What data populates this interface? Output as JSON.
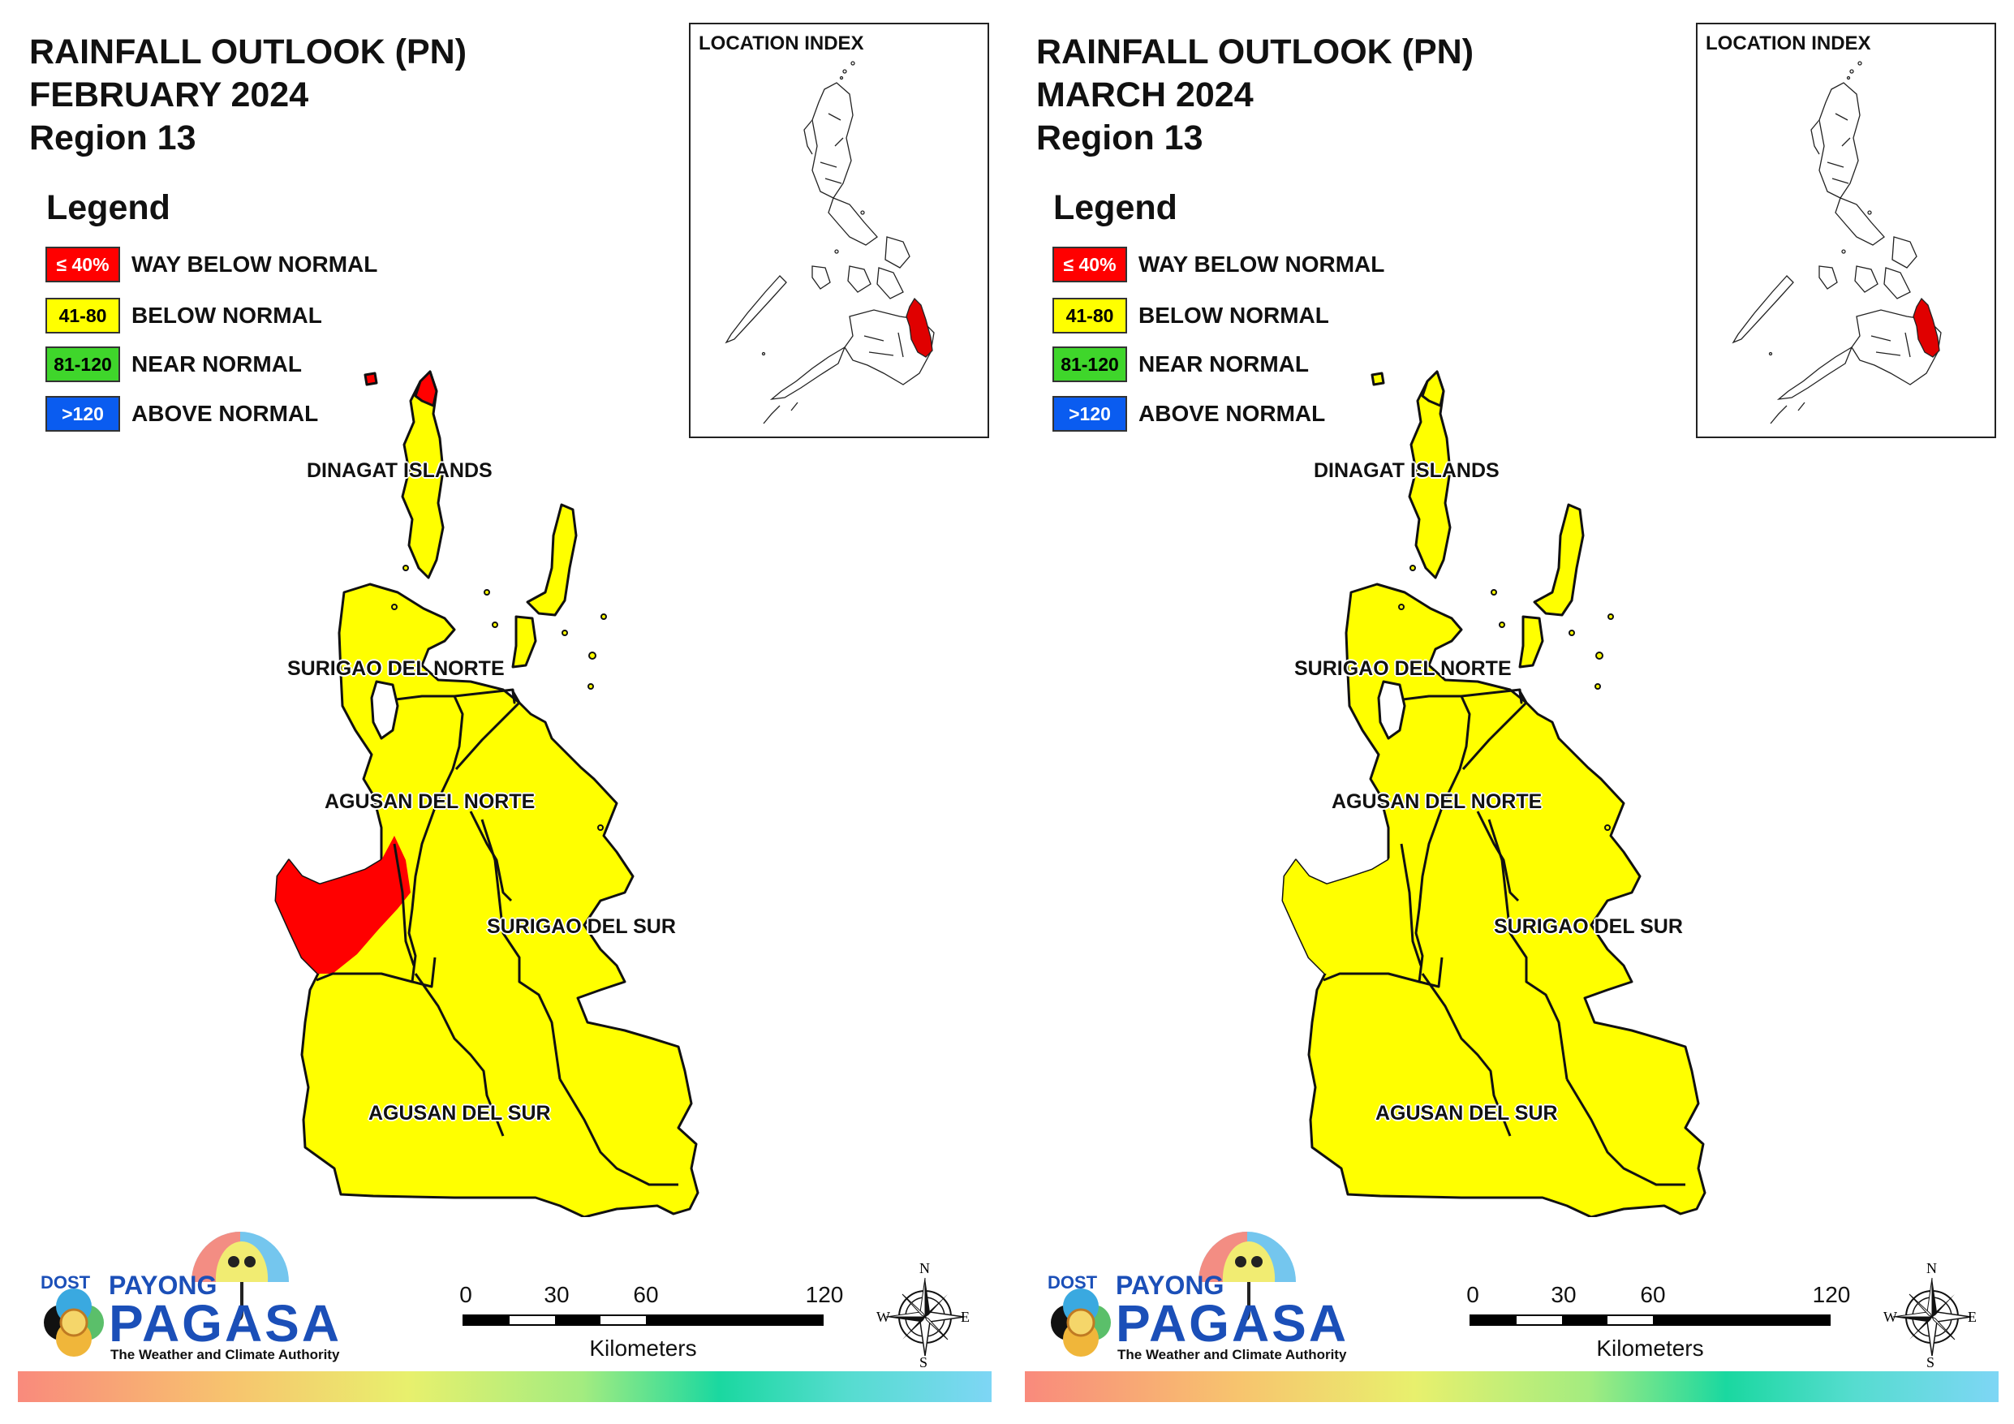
{
  "panels": [
    {
      "id": "february",
      "title_line1": "RAINFALL OUTLOOK (PN)",
      "title_line2": "FEBRUARY 2024",
      "title_line3": "Region 13",
      "west_area_color": "#ff0000",
      "north_tip_color": "#ff0000"
    },
    {
      "id": "march",
      "title_line1": "RAINFALL OUTLOOK (PN)",
      "title_line2": "MARCH 2024",
      "title_line3": "Region 13",
      "west_area_color": "#ffff00",
      "north_tip_color": "#ffff00"
    }
  ],
  "legend": {
    "title": "Legend",
    "items": [
      {
        "swatch_text": "≤ 40%",
        "label": "WAY BELOW NORMAL",
        "color": "#ff0000",
        "text_color": "#ffffff"
      },
      {
        "swatch_text": "41-80",
        "label": "BELOW NORMAL",
        "color": "#ffff00",
        "text_color": "#000000"
      },
      {
        "swatch_text": "81-120",
        "label": "NEAR NORMAL",
        "color": "#3fd62b",
        "text_color": "#000000"
      },
      {
        "swatch_text": ">120",
        "label": "ABOVE NORMAL",
        "color": "#0a5cf0",
        "text_color": "#ffffff"
      }
    ]
  },
  "location_index": {
    "title": "LOCATION INDEX",
    "highlight_color": "#e00000"
  },
  "provinces": {
    "dinagat": "DINAGAT ISLANDS",
    "surigao_norte": "SURIGAO DEL NORTE",
    "agusan_norte": "AGUSAN DEL NORTE",
    "surigao_sur": "SURIGAO DEL SUR",
    "agusan_sur": "AGUSAN DEL SUR"
  },
  "map_fill_color": "#ffff00",
  "scale": {
    "ticks": [
      "0",
      "30",
      "60",
      "120"
    ],
    "unit": "Kilometers"
  },
  "compass": {
    "n": "N",
    "s": "S",
    "e": "E",
    "w": "W"
  },
  "logo": {
    "dost": "DOST",
    "payong": "PAYONG",
    "pagasa": "PAGASA",
    "tagline": "The Weather and Climate Authority"
  }
}
